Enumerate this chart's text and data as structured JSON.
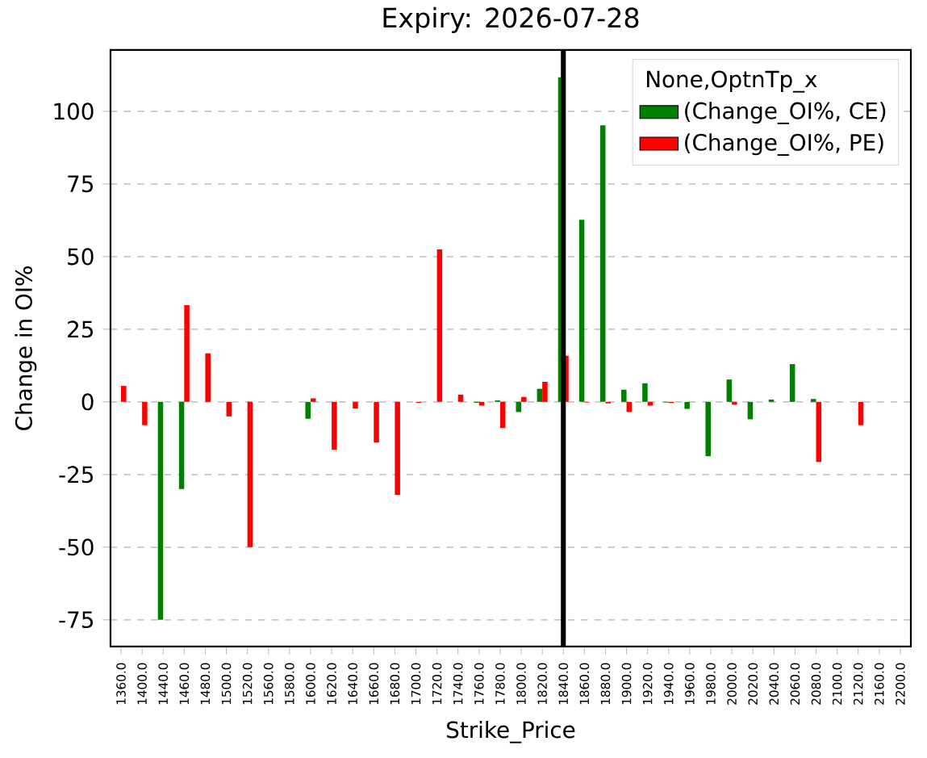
{
  "chart_data": {
    "type": "bar",
    "title": "Expiry: 2026-07-28",
    "xlabel": "Strike_Price",
    "ylabel": "Change in OI%",
    "legend_title": "None,OptnTp_x",
    "categories": [
      "1360.0",
      "1400.0",
      "1440.0",
      "1460.0",
      "1480.0",
      "1500.0",
      "1520.0",
      "1560.0",
      "1580.0",
      "1600.0",
      "1620.0",
      "1640.0",
      "1660.0",
      "1680.0",
      "1700.0",
      "1720.0",
      "1740.0",
      "1760.0",
      "1780.0",
      "1800.0",
      "1820.0",
      "1840.0",
      "1860.0",
      "1880.0",
      "1900.0",
      "1920.0",
      "1940.0",
      "1960.0",
      "1980.0",
      "2000.0",
      "2020.0",
      "2040.0",
      "2060.0",
      "2080.0",
      "2100.0",
      "2120.0",
      "2160.0",
      "2200.0"
    ],
    "series": [
      {
        "name": "(Change_OI%, CE)",
        "color": "#008000",
        "values": [
          null,
          null,
          -75,
          -30,
          null,
          null,
          null,
          null,
          null,
          -5.8,
          null,
          null,
          null,
          null,
          null,
          null,
          null,
          -0.3,
          0.5,
          -3.5,
          4.5,
          111.7,
          62.7,
          95.2,
          4.2,
          6.4,
          -0.2,
          -2.4,
          -18.7,
          7.7,
          -6.0,
          0.8,
          13.0,
          1.0,
          null,
          null,
          null,
          null
        ]
      },
      {
        "name": "(Change_OI%, PE)",
        "color": "#ff0000",
        "values": [
          5.5,
          -8,
          null,
          33.3,
          16.7,
          -5,
          -50,
          null,
          null,
          1.2,
          -16.5,
          -2.3,
          -14,
          -32,
          -0.3,
          52.5,
          2.5,
          -1.3,
          -9.0,
          1.7,
          6.9,
          15.9,
          -0.2,
          -0.5,
          -3.5,
          -1.3,
          -0.4,
          null,
          null,
          -1.0,
          null,
          null,
          null,
          -20.7,
          null,
          -8.0,
          null,
          null
        ]
      }
    ],
    "ylim": [
      -84.2,
      121.1
    ],
    "yticks": [
      -75,
      -50,
      -25,
      0,
      25,
      50,
      75,
      100
    ],
    "grid": "y",
    "legend": "top right",
    "ref_lines": [
      {
        "axis": "x",
        "value": "1840.0",
        "color": "#000000"
      }
    ]
  }
}
